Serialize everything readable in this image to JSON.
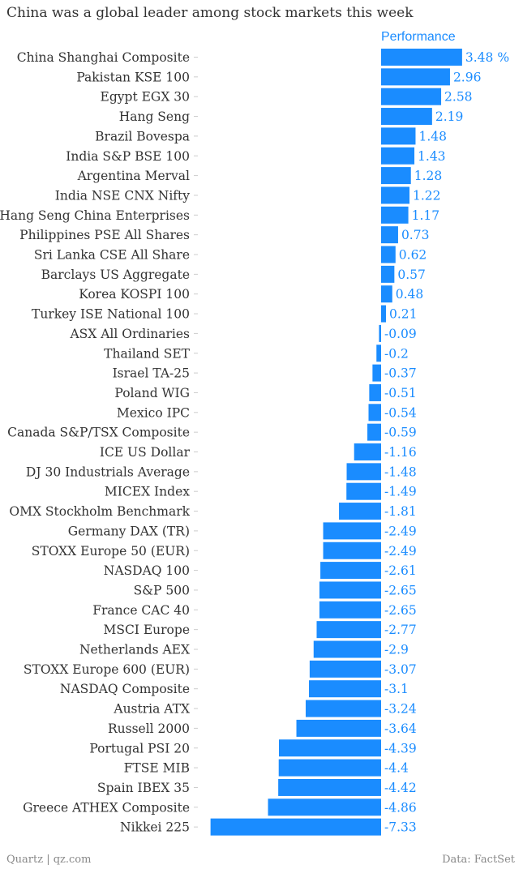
{
  "title": "China was a global leader among stock markets this week",
  "source_left": "Quartz | qz.com",
  "source_right": "Data: FactSet",
  "colors": {
    "bar": "#1a8cff",
    "value_label": "#1a8cff",
    "category_label": "#333333",
    "tick": "#cccccc"
  },
  "chart_data": {
    "type": "bar",
    "orientation": "horizontal",
    "title": "China was a global leader among stock markets this week",
    "series": [
      {
        "name": "Performance",
        "values": [
          3.48,
          2.96,
          2.58,
          2.19,
          1.48,
          1.43,
          1.28,
          1.22,
          1.17,
          0.73,
          0.62,
          0.57,
          0.48,
          0.21,
          -0.09,
          -0.2,
          -0.37,
          -0.51,
          -0.54,
          -0.59,
          -1.16,
          -1.48,
          -1.49,
          -1.81,
          -2.49,
          -2.49,
          -2.61,
          -2.65,
          -2.65,
          -2.77,
          -2.9,
          -3.07,
          -3.1,
          -3.24,
          -3.64,
          -4.39,
          -4.4,
          -4.42,
          -4.86,
          -7.33
        ]
      }
    ],
    "categories": [
      "China Shanghai Composite",
      "Pakistan KSE 100",
      "Egypt EGX 30",
      "Hang Seng",
      "Brazil Bovespa",
      "India S&P BSE 100",
      "Argentina Merval",
      "India NSE CNX Nifty",
      "Hang Seng China Enterprises",
      "Philippines PSE All Shares",
      "Sri Lanka CSE All Share",
      "Barclays US Aggregate",
      "Korea KOSPI 100",
      "Turkey ISE National 100",
      "ASX All Ordinaries",
      "Thailand SET",
      "Israel TA-25",
      "Poland WIG",
      "Mexico IPC",
      "Canada S&P/TSX Composite",
      "ICE US Dollar",
      "DJ 30 Industrials Average",
      "MICEX Index",
      "OMX Stockholm Benchmark",
      "Germany DAX (TR)",
      "STOXX Europe 50 (EUR)",
      "NASDAQ 100",
      "S&P 500",
      "France CAC 40",
      "MSCI Europe",
      "Netherlands AEX",
      "STOXX Europe 600 (EUR)",
      "NASDAQ Composite",
      "Austria ATX",
      "Russell 2000",
      "Portugal PSI 20",
      "FTSE MIB",
      "Spain IBEX 35",
      "Greece ATHEX Composite",
      "Nikkei 225"
    ],
    "value_labels": [
      "3.48 %",
      "2.96",
      "2.58",
      "2.19",
      "1.48",
      "1.43",
      "1.28",
      "1.22",
      "1.17",
      "0.73",
      "0.62",
      "0.57",
      "0.48",
      "0.21",
      "-0.09",
      "-0.2",
      "-0.37",
      "-0.51",
      "-0.54",
      "-0.59",
      "-1.16",
      "-1.48",
      "-1.49",
      "-1.81",
      "-2.49",
      "-2.49",
      "-2.61",
      "-2.65",
      "-2.65",
      "-2.77",
      "-2.9",
      "-3.07",
      "-3.1",
      "-3.24",
      "-3.64",
      "-4.39",
      "-4.4",
      "-4.42",
      "-4.86",
      "-7.33"
    ],
    "xlim": [
      -7.33,
      3.48
    ],
    "grid": false,
    "legend": "top"
  }
}
